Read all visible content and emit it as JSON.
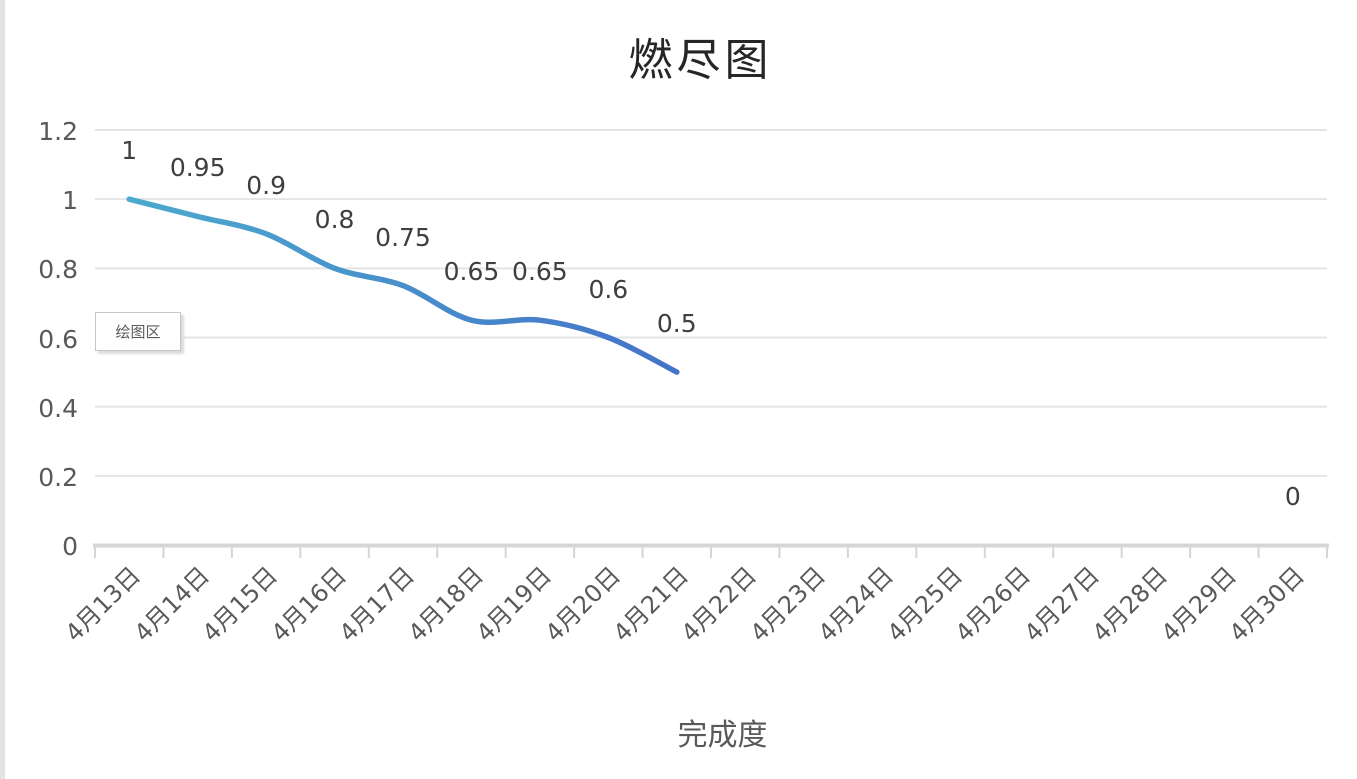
{
  "title": "燃尽图",
  "plot_area_tooltip": "绘图区",
  "legend": {
    "label": "完成度"
  },
  "colors": {
    "line_start": "#4BAACD",
    "line_end": "#4473C9",
    "gridline": "#e4e4e4",
    "axis_line": "#d6d6d6",
    "axis_text": "#595959",
    "data_label_text": "#3f3f3f"
  },
  "chart_data": {
    "type": "line",
    "title": "燃尽图",
    "categories": [
      "4月13日",
      "4月14日",
      "4月15日",
      "4月16日",
      "4月17日",
      "4月18日",
      "4月19日",
      "4月20日",
      "4月21日",
      "4月22日",
      "4月23日",
      "4月24日",
      "4月25日",
      "4月26日",
      "4月27日",
      "4月28日",
      "4月29日",
      "4月30日"
    ],
    "series": [
      {
        "name": "完成度",
        "values": [
          1,
          0.95,
          0.9,
          0.8,
          0.75,
          0.65,
          0.65,
          0.6,
          0.5,
          null,
          null,
          null,
          null,
          null,
          null,
          null,
          null,
          0
        ]
      }
    ],
    "yticks": [
      "0",
      "0.2",
      "0.4",
      "0.6",
      "0.8",
      "1",
      "1.2"
    ],
    "ylim": [
      0,
      1.2
    ],
    "grid": "horizontal",
    "legend_position": "bottom",
    "data_labels": true,
    "smooth": true,
    "line_gradient": [
      "#4BAACD",
      "#4473C9"
    ]
  }
}
